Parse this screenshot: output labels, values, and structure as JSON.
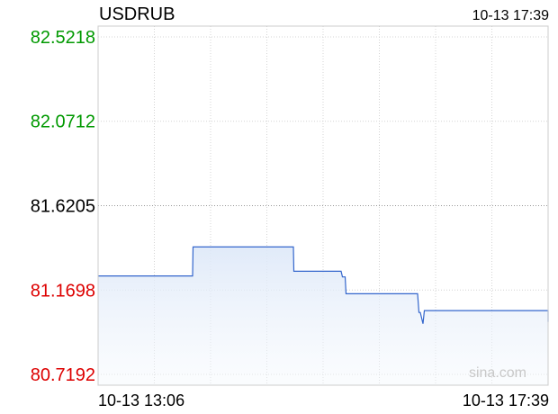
{
  "chart_data": {
    "type": "line",
    "title": "USDRUB",
    "timestamp": "10-13 17:39",
    "watermark": "sina.com",
    "x_labels": [
      "10-13 13:06",
      "10-13 17:39"
    ],
    "y_ticks": [
      {
        "label": "82.5218",
        "value": 82.5218,
        "color": "#009900"
      },
      {
        "label": "82.0712",
        "value": 82.0712,
        "color": "#009900"
      },
      {
        "label": "81.6205",
        "value": 81.6205,
        "color": "#000000"
      },
      {
        "label": "81.1698",
        "value": 81.1698,
        "color": "#dd0000"
      },
      {
        "label": "80.7192",
        "value": 80.7192,
        "color": "#dd0000"
      }
    ],
    "ylim": [
      80.65,
      82.5218
    ],
    "reference_value": 81.6205,
    "x_range": [
      0,
      100
    ],
    "series": [
      {
        "color": "#3366cc",
        "points": [
          [
            0,
            81.245
          ],
          [
            21.0,
            81.245
          ],
          [
            21.1,
            81.4
          ],
          [
            43.4,
            81.4
          ],
          [
            43.5,
            81.27
          ],
          [
            54.0,
            81.27
          ],
          [
            54.3,
            81.24
          ],
          [
            54.9,
            81.24
          ],
          [
            55.1,
            81.15
          ],
          [
            71.0,
            81.15
          ],
          [
            71.3,
            81.05
          ],
          [
            71.6,
            81.05
          ],
          [
            72.2,
            80.99
          ],
          [
            72.5,
            81.06
          ],
          [
            100.0,
            81.06
          ],
          [
            100.0,
            81.0
          ]
        ]
      }
    ]
  }
}
